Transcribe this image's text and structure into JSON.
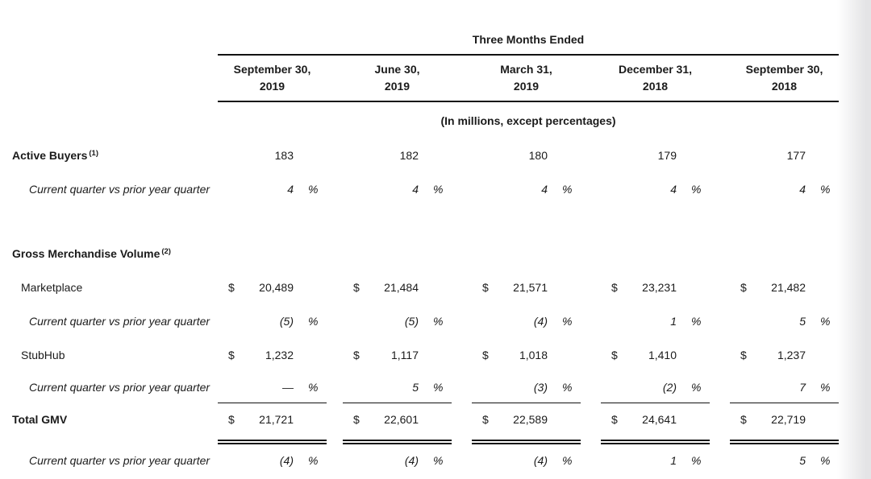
{
  "report": {
    "period_header": "Three Months Ended",
    "units_note": "(In millions, except percentages)",
    "columns": [
      {
        "month": "September 30,",
        "year": "2019"
      },
      {
        "month": "June 30,",
        "year": "2019"
      },
      {
        "month": "March 31,",
        "year": "2019"
      },
      {
        "month": "December 31,",
        "year": "2018"
      },
      {
        "month": "September 30,",
        "year": "2018"
      }
    ],
    "symbols": {
      "dollar": "$",
      "percent": "%"
    },
    "rows": {
      "active_buyers": {
        "label": "Active Buyers",
        "footnote": "(1)",
        "values": [
          "183",
          "182",
          "180",
          "179",
          "177"
        ]
      },
      "active_buyers_yoy": {
        "label": "Current quarter vs prior year quarter",
        "values": [
          "4",
          "4",
          "4",
          "4",
          "4"
        ]
      },
      "gmv_section": {
        "label": "Gross Merchandise Volume",
        "footnote": "(2)"
      },
      "marketplace": {
        "label": "Marketplace",
        "values": [
          "20,489",
          "21,484",
          "21,571",
          "23,231",
          "21,482"
        ]
      },
      "marketplace_yoy": {
        "label": "Current quarter vs prior year quarter",
        "values": [
          "(5)",
          "(5)",
          "(4)",
          "1",
          "5"
        ]
      },
      "stubhub": {
        "label": "StubHub",
        "values": [
          "1,232",
          "1,117",
          "1,018",
          "1,410",
          "1,237"
        ]
      },
      "stubhub_yoy": {
        "label": "Current quarter vs prior year quarter",
        "values": [
          "—",
          "5",
          "(3)",
          "(2)",
          "7"
        ]
      },
      "total_gmv": {
        "label": "Total GMV",
        "values": [
          "21,721",
          "22,601",
          "22,589",
          "24,641",
          "22,719"
        ]
      },
      "total_gmv_yoy": {
        "label": "Current quarter vs prior year quarter",
        "values": [
          "(4)",
          "(4)",
          "(4)",
          "1",
          "5"
        ]
      }
    }
  }
}
